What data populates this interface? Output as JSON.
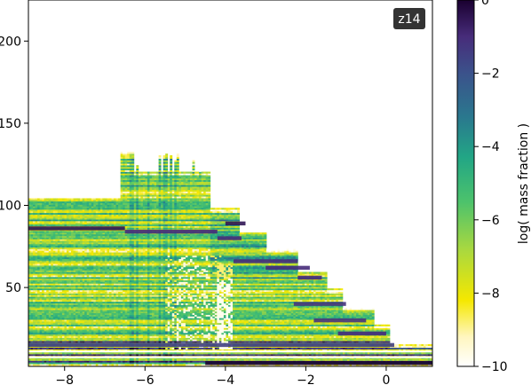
{
  "chart_data": {
    "type": "heatmap",
    "badge": "z14",
    "title": "",
    "xlabel": "",
    "ylabel": "",
    "xlim": [
      -8.9,
      1.15
    ],
    "ylim": [
      2,
      225
    ],
    "xticks": [
      -8,
      -6,
      -4,
      -2,
      0
    ],
    "xtick_labels": [
      "−8",
      "−6",
      "−4",
      "−2",
      "0"
    ],
    "yticks": [
      50,
      100,
      150,
      200
    ],
    "ytick_labels": [
      "50",
      "100",
      "150",
      "200"
    ],
    "colorbar": {
      "label": "log( mass fraction )",
      "range": [
        -10,
        0
      ],
      "ticks": [
        0,
        -2,
        -4,
        -6,
        -8,
        -10
      ],
      "tick_labels": [
        "0",
        "−2",
        "−4",
        "−6",
        "−8",
        "−10"
      ],
      "colormap": "viridis_r"
    },
    "envelope": [
      {
        "x_start": -8.9,
        "x_end": -6.6,
        "top_mass": 105
      },
      {
        "x_start": -6.6,
        "x_end": -6.3,
        "top_mass": 132
      },
      {
        "x_start": -6.3,
        "x_end": -4.4,
        "top_mass": 120
      },
      {
        "x_start": -4.4,
        "x_end": -3.65,
        "top_mass": 98
      },
      {
        "x_start": -3.65,
        "x_end": -3.0,
        "top_mass": 83
      },
      {
        "x_start": -3.0,
        "x_end": -2.2,
        "top_mass": 73
      },
      {
        "x_start": -2.2,
        "x_end": -1.5,
        "top_mass": 59
      },
      {
        "x_start": -1.5,
        "x_end": -1.1,
        "top_mass": 49
      },
      {
        "x_start": -1.1,
        "x_end": -0.3,
        "top_mass": 37
      },
      {
        "x_start": -0.3,
        "x_end": 0.1,
        "top_mass": 27
      },
      {
        "x_start": 0.1,
        "x_end": 1.15,
        "top_mass": 15
      }
    ],
    "dominant_bands": [
      {
        "mass": 86,
        "x_start": -8.9,
        "x_end": -6.5,
        "log_fraction": -0.5
      },
      {
        "mass": 84,
        "x_start": -6.5,
        "x_end": -4.2,
        "log_fraction": -1.0
      },
      {
        "mass": 89,
        "x_start": -4.0,
        "x_end": -3.5,
        "log_fraction": -0.5
      },
      {
        "mass": 80,
        "x_start": -4.2,
        "x_end": -3.6,
        "log_fraction": -1.0
      },
      {
        "mass": 66,
        "x_start": -3.8,
        "x_end": -2.2,
        "log_fraction": -1.0
      },
      {
        "mass": 62,
        "x_start": -3.0,
        "x_end": -1.9,
        "log_fraction": -1.0
      },
      {
        "mass": 56,
        "x_start": -2.2,
        "x_end": -1.6,
        "log_fraction": -1.0
      },
      {
        "mass": 40,
        "x_start": -2.3,
        "x_end": -1.0,
        "log_fraction": -1.2
      },
      {
        "mass": 30,
        "x_start": -1.8,
        "x_end": -0.5,
        "log_fraction": -1.2
      },
      {
        "mass": 22,
        "x_start": -1.2,
        "x_end": 0.0,
        "log_fraction": -1.0
      },
      {
        "mass": 15,
        "x_start": -8.9,
        "x_end": 0.2,
        "log_fraction": -1.5
      },
      {
        "mass": 4,
        "x_start": -4.5,
        "x_end": 1.15,
        "log_fraction": 0.0
      }
    ]
  }
}
